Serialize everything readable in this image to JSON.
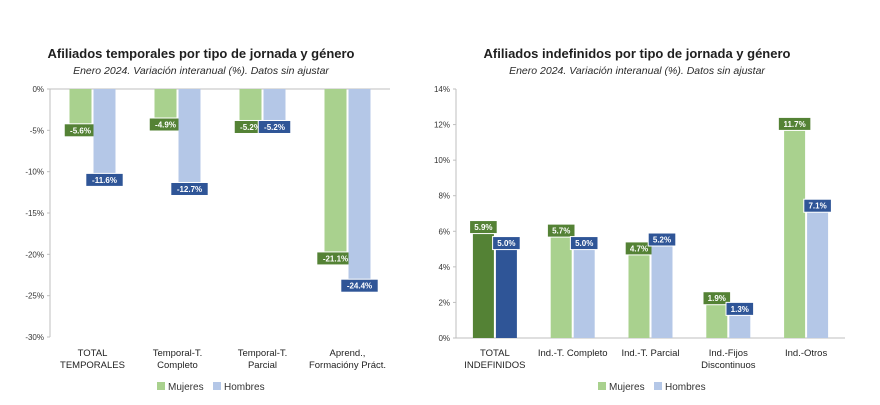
{
  "chart_data": [
    {
      "type": "bar",
      "title": "Afiliados temporales por tipo de jornada y género",
      "subtitle": "Enero 2024. Variación interanual (%). Datos sin ajustar",
      "categories": [
        [
          "TOTAL",
          "TEMPORALES"
        ],
        [
          "Temporal-T.",
          "Completo"
        ],
        [
          "Temporal-T.",
          "Parcial"
        ],
        [
          "Aprend.,",
          "Formacióny Práct."
        ]
      ],
      "series": [
        {
          "name": "Mujeres",
          "values": [
            -5.6,
            -4.9,
            -5.2,
            -21.1
          ],
          "labels": [
            "-5.6%",
            "-4.9%",
            "-5.2%",
            "-21.1%"
          ]
        },
        {
          "name": "Hombres",
          "values": [
            -11.6,
            -12.7,
            -5.2,
            -24.4
          ],
          "labels": [
            "-11.6%",
            "-12.7%",
            "-5.2%",
            "-24.4%"
          ]
        }
      ],
      "yticks": [
        0,
        -5,
        -10,
        -15,
        -20,
        -25,
        -30
      ],
      "ytick_labels": [
        "0%",
        "-5%",
        "-10%",
        "-15%",
        "-20%",
        "-25%",
        "-30%"
      ],
      "ylim": [
        -30,
        0
      ],
      "legend": [
        "Mujeres",
        "Hombres"
      ],
      "legend_position": "bottom",
      "grid": false,
      "colors": {
        "mujeres": "#a9d18e",
        "hombres": "#b4c7e7",
        "label_mujeres": "#548235",
        "label_hombres": "#2f5597"
      }
    },
    {
      "type": "bar",
      "title": "Afiliados indefinidos por tipo de jornada y género",
      "subtitle": "Enero 2024. Variación interanual (%). Datos sin ajustar",
      "categories": [
        [
          "TOTAL",
          "INDEFINIDOS"
        ],
        [
          "Ind.-T. Completo"
        ],
        [
          "Ind.-T. Parcial"
        ],
        [
          "Ind.-Fijos",
          "Discontinuos"
        ],
        [
          "Ind.-Otros"
        ]
      ],
      "series": [
        {
          "name": "Mujeres",
          "values": [
            5.9,
            5.7,
            4.7,
            1.9,
            11.7
          ],
          "labels": [
            "5.9%",
            "5.7%",
            "4.7%",
            "1.9%",
            "11.7%"
          ]
        },
        {
          "name": "Hombres",
          "values": [
            5.0,
            5.0,
            5.2,
            1.3,
            7.1
          ],
          "labels": [
            "5.0%",
            "5.0%",
            "5.2%",
            "1.3%",
            "7.1%"
          ]
        }
      ],
      "yticks": [
        0,
        2,
        4,
        6,
        8,
        10,
        12,
        14
      ],
      "ytick_labels": [
        "0%",
        "2%",
        "4%",
        "6%",
        "8%",
        "10%",
        "12%",
        "14%"
      ],
      "ylim": [
        0,
        14
      ],
      "legend": [
        "Mujeres",
        "Hombres"
      ],
      "legend_position": "bottom",
      "grid": false,
      "highlight_first_category": true,
      "colors": {
        "mujeres": "#a9d18e",
        "hombres": "#b4c7e7",
        "mujeres_dark": "#548235",
        "hombres_dark": "#2f5597",
        "label_mujeres": "#548235",
        "label_hombres": "#2f5597"
      }
    }
  ]
}
